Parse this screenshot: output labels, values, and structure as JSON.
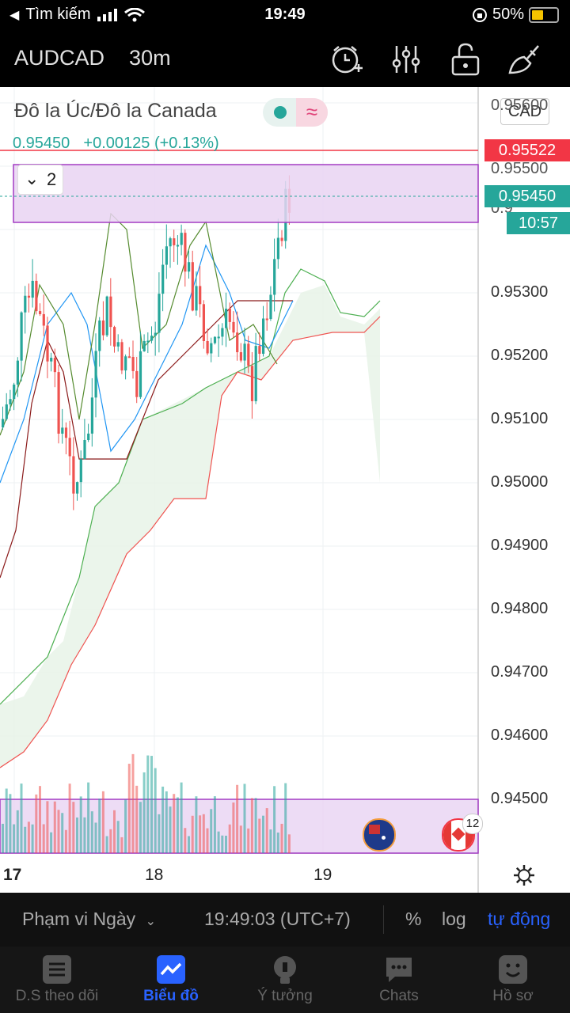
{
  "status": {
    "back_label": "Tìm kiếm",
    "time": "19:49",
    "battery": "50%"
  },
  "toolbar": {
    "symbol": "AUDCAD",
    "interval": "30m"
  },
  "legend": {
    "name": "Đô la Úc/Đô la Canada",
    "price": "0.95450",
    "change": "+0.00125 (+0.13%)",
    "currency": "CAD",
    "indicator_badge": "≈",
    "collapse_count": "2"
  },
  "price_axis": {
    "labels": [
      "0.95300",
      "0.95200",
      "0.95100",
      "0.95000",
      "0.94900",
      "0.94800",
      "0.94700",
      "0.94600",
      "0.94500"
    ],
    "top_partial": "0.95600",
    "partial_500": "0.95500",
    "partial_400": "0.9",
    "red_tag": "0.95522",
    "green_tag": "0.95450",
    "countdown": "10:57"
  },
  "time_axis": {
    "labels": [
      "17",
      "18",
      "19"
    ]
  },
  "event_badge_count": "12",
  "bottom_bar": {
    "range": "Phạm vi Ngày",
    "clock": "19:49:03 (UTC+7)",
    "percent": "%",
    "log": "log",
    "auto": "tự động"
  },
  "tabs": [
    {
      "label": "D.S theo dõi",
      "icon": "watchlist-icon"
    },
    {
      "label": "Biểu đồ",
      "icon": "chart-icon"
    },
    {
      "label": "Ý tưởng",
      "icon": "ideas-icon"
    },
    {
      "label": "Chats",
      "icon": "chats-icon"
    },
    {
      "label": "Hồ sơ",
      "icon": "profile-icon"
    }
  ],
  "colors": {
    "up": "#26a69a",
    "down": "#ef5350",
    "accent": "#2962ff",
    "range_fill": "#e9d3f2",
    "range_border": "#a33cc4"
  }
}
